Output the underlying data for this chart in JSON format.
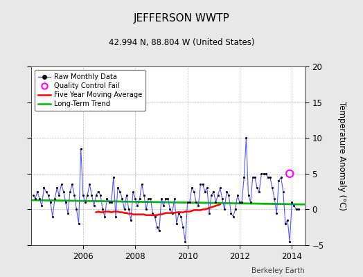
{
  "title": "JEFFERSON WWTP",
  "subtitle": "42.994 N, 88.804 W (United States)",
  "ylabel": "Temperature Anomaly (°C)",
  "credit": "Berkeley Earth",
  "ylim": [
    -5,
    20
  ],
  "yticks": [
    -5,
    0,
    5,
    10,
    15,
    20
  ],
  "xlim": [
    2004.0,
    2014.5
  ],
  "xticks": [
    2006,
    2008,
    2010,
    2012,
    2014
  ],
  "bg_color": "#e8e8e8",
  "plot_bg_color": "#ffffff",
  "raw_color": "#5555ff",
  "dot_color": "#000000",
  "ma_color": "#ff0000",
  "trend_color": "#00bb00",
  "qc_color": "#ff00ff",
  "raw_x": [
    2004.083,
    2004.167,
    2004.25,
    2004.333,
    2004.417,
    2004.5,
    2004.583,
    2004.667,
    2004.75,
    2004.833,
    2004.917,
    2005.0,
    2005.083,
    2005.167,
    2005.25,
    2005.333,
    2005.417,
    2005.5,
    2005.583,
    2005.667,
    2005.75,
    2005.833,
    2005.917,
    2006.0,
    2006.083,
    2006.167,
    2006.25,
    2006.333,
    2006.417,
    2006.5,
    2006.583,
    2006.667,
    2006.75,
    2006.833,
    2006.917,
    2007.0,
    2007.083,
    2007.167,
    2007.25,
    2007.333,
    2007.417,
    2007.5,
    2007.583,
    2007.667,
    2007.75,
    2007.833,
    2007.917,
    2008.0,
    2008.083,
    2008.167,
    2008.25,
    2008.333,
    2008.417,
    2008.5,
    2008.583,
    2008.667,
    2008.75,
    2008.833,
    2008.917,
    2009.0,
    2009.083,
    2009.167,
    2009.25,
    2009.333,
    2009.417,
    2009.5,
    2009.583,
    2009.667,
    2009.75,
    2009.833,
    2009.917,
    2010.0,
    2010.083,
    2010.167,
    2010.25,
    2010.333,
    2010.417,
    2010.5,
    2010.583,
    2010.667,
    2010.75,
    2010.833,
    2010.917,
    2011.0,
    2011.083,
    2011.167,
    2011.25,
    2011.333,
    2011.417,
    2011.5,
    2011.583,
    2011.667,
    2011.75,
    2011.833,
    2011.917,
    2012.0,
    2012.083,
    2012.167,
    2012.25,
    2012.333,
    2012.417,
    2012.5,
    2012.583,
    2012.667,
    2012.75,
    2012.833,
    2012.917,
    2013.0,
    2013.083,
    2013.167,
    2013.25,
    2013.333,
    2013.417,
    2013.5,
    2013.583,
    2013.667,
    2013.75,
    2013.833,
    2013.917,
    2014.0,
    2014.083,
    2014.167,
    2014.25
  ],
  "raw_y": [
    2.0,
    1.5,
    2.5,
    1.5,
    0.5,
    3.0,
    2.5,
    2.0,
    1.0,
    -1.0,
    1.5,
    3.0,
    2.0,
    3.5,
    2.5,
    1.0,
    -0.5,
    2.5,
    3.5,
    2.0,
    0.0,
    -2.0,
    8.5,
    2.0,
    1.0,
    2.0,
    3.5,
    2.0,
    0.5,
    2.0,
    2.5,
    2.0,
    0.0,
    -1.0,
    1.5,
    1.0,
    1.0,
    4.5,
    -1.0,
    3.0,
    2.5,
    1.5,
    0.0,
    2.0,
    0.0,
    -1.5,
    2.5,
    1.5,
    0.5,
    1.5,
    3.5,
    2.0,
    0.0,
    1.5,
    1.5,
    -0.5,
    -1.0,
    -2.5,
    -3.0,
    1.5,
    0.5,
    1.5,
    1.5,
    0.0,
    -0.5,
    1.5,
    -2.0,
    -0.5,
    -1.0,
    -2.5,
    -4.5,
    1.0,
    1.0,
    3.0,
    2.5,
    1.0,
    0.5,
    3.5,
    3.5,
    2.5,
    3.0,
    -0.5,
    2.0,
    2.5,
    1.0,
    2.0,
    3.0,
    1.5,
    0.0,
    2.5,
    2.0,
    -0.5,
    -1.0,
    0.0,
    2.0,
    1.0,
    1.0,
    4.5,
    10.0,
    2.0,
    1.0,
    4.5,
    4.5,
    3.0,
    2.5,
    5.0,
    5.0,
    5.0,
    4.5,
    4.5,
    3.0,
    1.5,
    -0.5,
    4.0,
    4.5,
    2.5,
    -2.0,
    -1.5,
    -4.5,
    1.0,
    0.5,
    0.0,
    0.0
  ],
  "ma_x": [
    2006.5,
    2006.583,
    2006.667,
    2006.75,
    2006.833,
    2006.917,
    2007.0,
    2007.083,
    2007.167,
    2007.25,
    2007.333,
    2007.417,
    2007.5,
    2007.583,
    2007.667,
    2007.75,
    2007.833,
    2007.917,
    2008.0,
    2008.083,
    2008.167,
    2008.25,
    2008.333,
    2008.417,
    2008.5,
    2008.583,
    2008.667,
    2008.75,
    2008.833,
    2008.917,
    2009.0,
    2009.083,
    2009.167,
    2009.25,
    2009.333,
    2009.417,
    2009.5,
    2009.583,
    2009.667,
    2009.75,
    2009.833,
    2009.917,
    2010.0,
    2010.083,
    2010.167,
    2010.25,
    2010.333,
    2010.417,
    2010.5,
    2010.583,
    2010.667,
    2010.75,
    2010.833,
    2010.917,
    2011.0,
    2011.083,
    2011.167,
    2011.25
  ],
  "ma_y": [
    -0.4,
    -0.3,
    -0.4,
    -0.4,
    -0.3,
    -0.3,
    -0.3,
    -0.4,
    -0.3,
    -0.3,
    -0.3,
    -0.4,
    -0.4,
    -0.5,
    -0.5,
    -0.6,
    -0.6,
    -0.7,
    -0.7,
    -0.7,
    -0.7,
    -0.7,
    -0.7,
    -0.8,
    -0.8,
    -0.8,
    -0.8,
    -0.8,
    -0.8,
    -0.7,
    -0.7,
    -0.6,
    -0.5,
    -0.5,
    -0.5,
    -0.5,
    -0.5,
    -0.4,
    -0.4,
    -0.4,
    -0.4,
    -0.3,
    -0.3,
    -0.3,
    -0.2,
    -0.1,
    -0.1,
    -0.1,
    -0.1,
    0.0,
    0.0,
    0.1,
    0.2,
    0.3,
    0.4,
    0.5,
    0.6,
    0.7
  ],
  "trend_x": [
    2004.0,
    2014.5
  ],
  "trend_y": [
    1.3,
    0.7
  ],
  "qc_x": [
    2013.917
  ],
  "qc_y": [
    5.0
  ]
}
